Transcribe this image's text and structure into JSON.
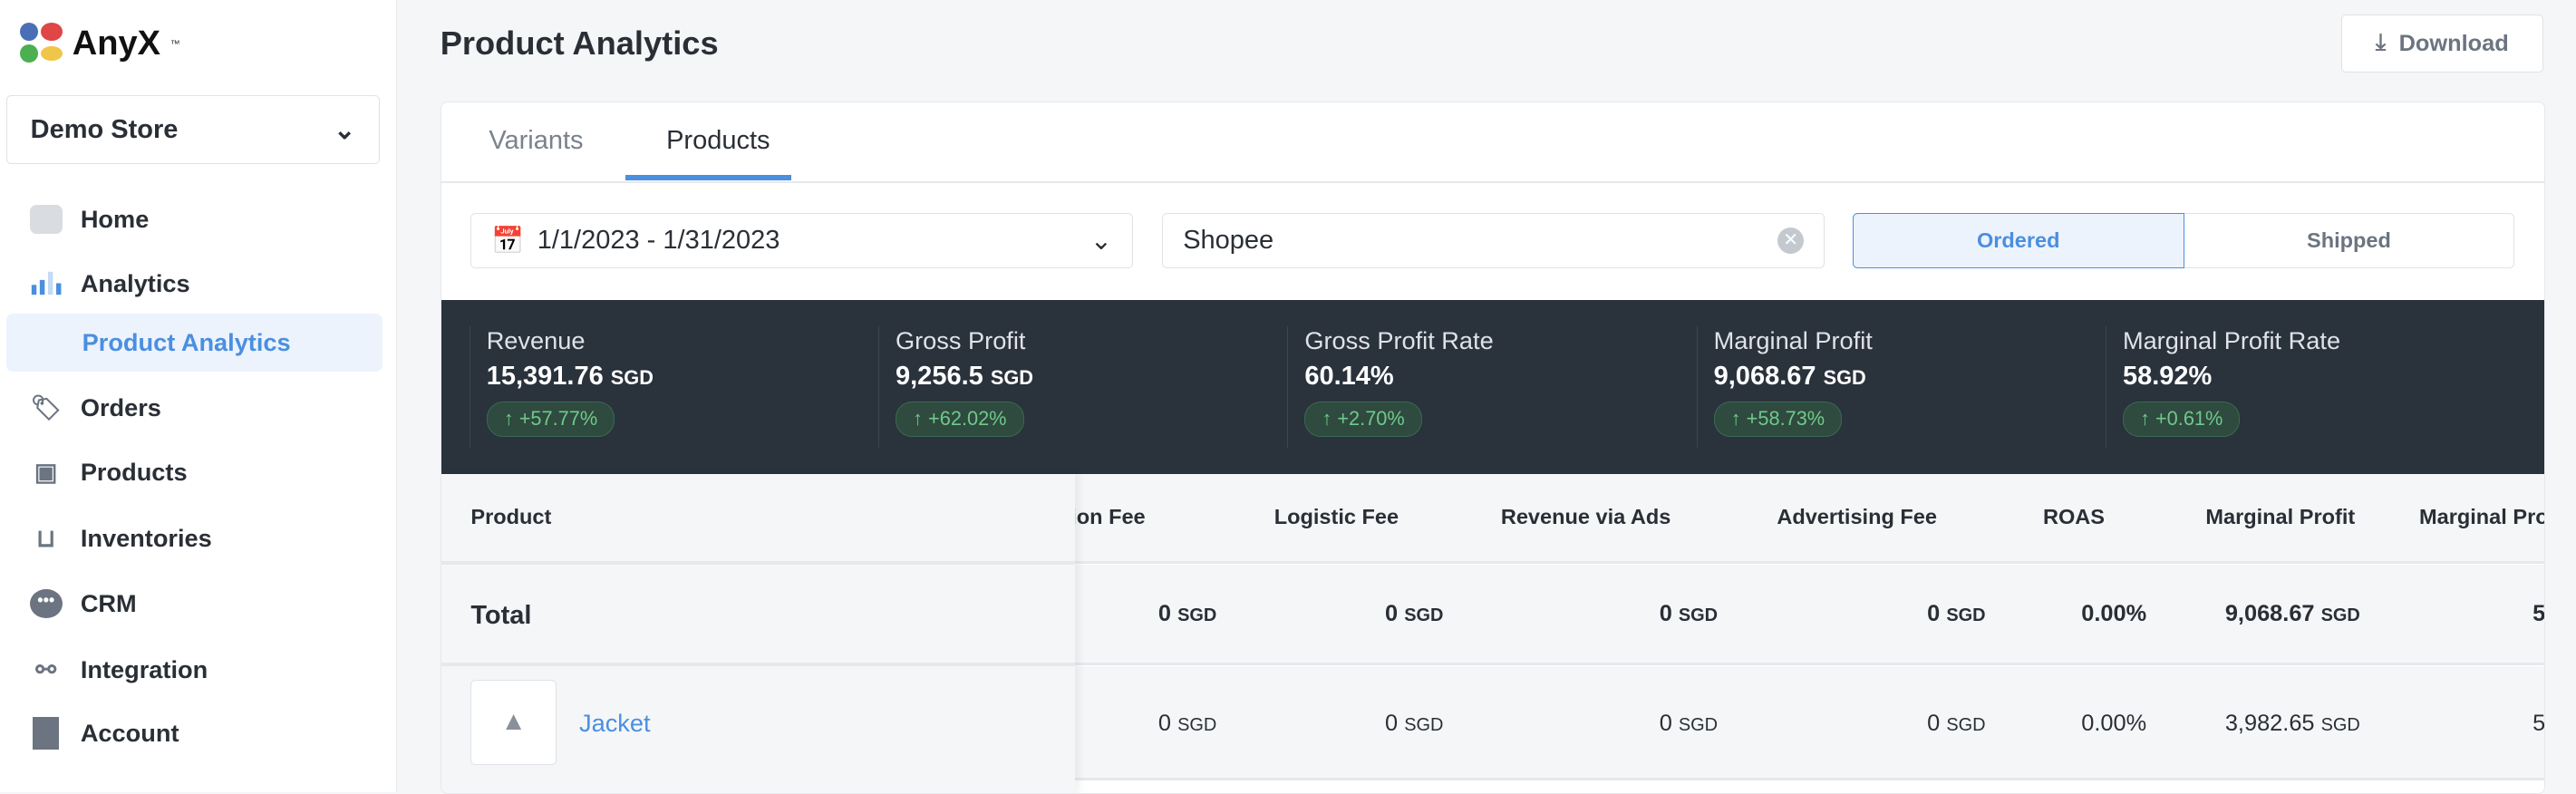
{
  "brand": {
    "name": "AnyX",
    "tm": "™"
  },
  "store_selector": {
    "value": "Demo Store"
  },
  "sidebar": {
    "items": [
      {
        "label": "Home",
        "icon": "home-icon"
      },
      {
        "label": "Analytics",
        "icon": "bar-chart-icon"
      },
      {
        "label": "Product Analytics",
        "icon": "",
        "active": true
      },
      {
        "label": "Orders",
        "icon": "tag-icon"
      },
      {
        "label": "Products",
        "icon": "box-icon"
      },
      {
        "label": "Inventories",
        "icon": "dolly-icon"
      },
      {
        "label": "CRM",
        "icon": "chat-icon"
      },
      {
        "label": "Integration",
        "icon": "integration-icon"
      },
      {
        "label": "Account",
        "icon": "building-icon"
      }
    ]
  },
  "header": {
    "title": "Product Analytics",
    "download_label": "Download"
  },
  "tabs": [
    {
      "label": "Variants"
    },
    {
      "label": "Products",
      "active": true
    }
  ],
  "filters": {
    "date_range": "1/1/2023 - 1/31/2023",
    "channel": "Shopee",
    "mode_options": [
      "Ordered",
      "Shipped"
    ],
    "mode_selected": "Ordered"
  },
  "stats": [
    {
      "label": "Revenue",
      "value": "15,391.76",
      "unit": "SGD",
      "change": "+57.77%"
    },
    {
      "label": "Gross Profit",
      "value": "9,256.5",
      "unit": "SGD",
      "change": "+62.02%"
    },
    {
      "label": "Gross Profit Rate",
      "value": "60.14%",
      "unit": "",
      "change": "+2.70%"
    },
    {
      "label": "Marginal Profit",
      "value": "9,068.67",
      "unit": "SGD",
      "change": "+58.73%"
    },
    {
      "label": "Marginal Profit Rate",
      "value": "58.92%",
      "unit": "",
      "change": "+0.61%"
    }
  ],
  "table": {
    "product_header": "Product",
    "columns": [
      "mmission Fee",
      "Logistic Fee",
      "Revenue via Ads",
      "Advertising Fee",
      "ROAS",
      "Marginal Profit",
      "Marginal Pro"
    ],
    "total": {
      "label": "Total",
      "cells": [
        [
          "0",
          "SGD"
        ],
        [
          "0",
          "SGD"
        ],
        [
          "0",
          "SGD"
        ],
        [
          "0",
          "SGD"
        ],
        [
          "0.00%",
          ""
        ],
        [
          "9,068.67",
          "SGD"
        ],
        [
          "5",
          ""
        ]
      ]
    },
    "rows": [
      {
        "name": "Jacket",
        "cells": [
          [
            "0",
            "SGD"
          ],
          [
            "0",
            "SGD"
          ],
          [
            "0",
            "SGD"
          ],
          [
            "0",
            "SGD"
          ],
          [
            "0.00%",
            ""
          ],
          [
            "3,982.65",
            "SGD"
          ],
          [
            "5",
            ""
          ]
        ]
      }
    ]
  },
  "colors": {
    "accent": "#4a8fe0",
    "stats_bg": "#2a323c",
    "positive": "#6fc98b"
  }
}
